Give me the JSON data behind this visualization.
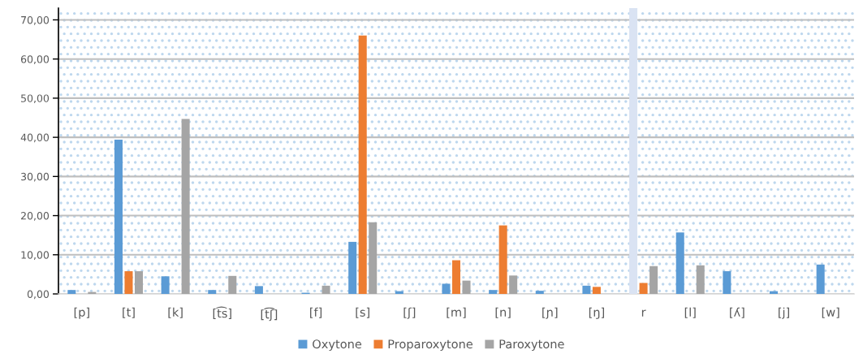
{
  "chart_data": {
    "type": "bar",
    "categories": [
      "[p]",
      "[t]",
      "[k]",
      "[t͡s]",
      "[t͡ʃ]",
      "[f]",
      "[s]",
      "[ʃ]",
      "[m]",
      "[n]",
      "[ɲ]",
      "[ŋ]",
      "r",
      "[l]",
      "[ʎ]",
      "[j]",
      "[w]"
    ],
    "series": [
      {
        "name": "Oxytone",
        "color": "#5b9bd5",
        "colors": [
          "#5b9bd5",
          "#5b9bd5",
          "#5b9bd5",
          "#5b9bd5",
          "#5b9bd5",
          "#5b9bd5",
          "#5b9bd5",
          "#5b9bd5",
          "#5b9bd5",
          "#5b9bd5",
          "#5b9bd5",
          "#5b9bd5",
          "#dae3f3",
          "#5b9bd5",
          "#5b9bd5",
          "#5b9bd5",
          "#5b9bd5"
        ],
        "values": [
          1.0,
          39.4,
          4.5,
          1.0,
          2.0,
          0.3,
          13.3,
          0.7,
          2.6,
          1.0,
          0.8,
          2.1,
          73,
          15.7,
          5.8,
          0.7,
          7.5
        ]
      },
      {
        "name": "Proparoxytone",
        "color": "#ed7d31",
        "values": [
          null,
          5.8,
          null,
          null,
          null,
          null,
          66.0,
          null,
          8.6,
          17.5,
          null,
          1.8,
          2.8,
          null,
          null,
          null,
          null
        ]
      },
      {
        "name": "Paroxytone",
        "color": "#a5a5a5",
        "values": [
          0.5,
          5.8,
          44.7,
          4.6,
          null,
          2.1,
          18.3,
          null,
          3.4,
          4.7,
          null,
          null,
          7.1,
          7.3,
          null,
          null,
          null
        ]
      }
    ],
    "ylim": [
      0,
      73
    ],
    "yticks": [
      {
        "value": 0,
        "label": "0,00"
      },
      {
        "value": 10,
        "label": "10,00"
      },
      {
        "value": 20,
        "label": "20,00"
      },
      {
        "value": 30,
        "label": "30,00"
      },
      {
        "value": 40,
        "label": "40,00"
      },
      {
        "value": 50,
        "label": "50,00"
      },
      {
        "value": 60,
        "label": "60,00"
      },
      {
        "value": 70,
        "label": "70,00"
      }
    ],
    "grid": "y",
    "legend": "bottom"
  }
}
